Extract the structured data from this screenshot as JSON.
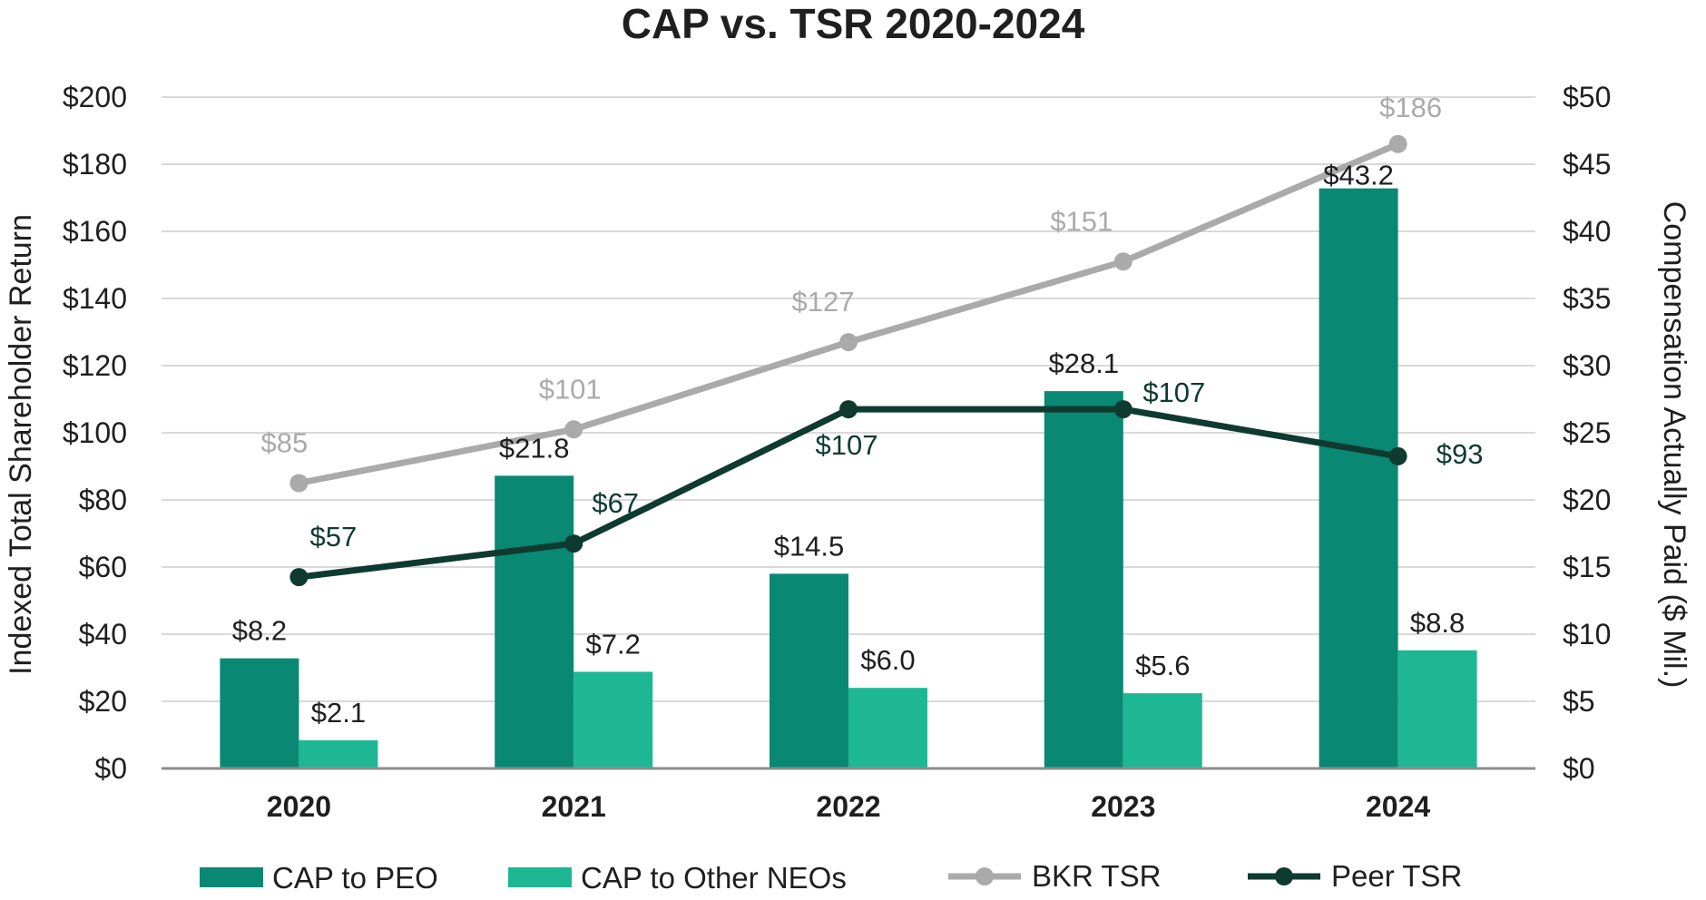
{
  "chart_data": {
    "type": "bar",
    "title": "CAP vs. TSR 2020-2024",
    "categories": [
      "2020",
      "2021",
      "2022",
      "2023",
      "2024"
    ],
    "ylabel": "Indexed Total Shareholder Return",
    "y2label": "Compensation Actually Paid ($ Mil.)",
    "ylim": [
      0,
      200
    ],
    "y2lim": [
      0,
      50
    ],
    "yticks": [
      "$0",
      "$20",
      "$40",
      "$60",
      "$80",
      "$100",
      "$120",
      "$140",
      "$160",
      "$180",
      "$200"
    ],
    "y2ticks": [
      "$0",
      "$5",
      "$10",
      "$15",
      "$20",
      "$25",
      "$30",
      "$35",
      "$40",
      "$45",
      "$50"
    ],
    "grid": true,
    "legend_position": "bottom",
    "series": [
      {
        "name": "CAP to PEO",
        "type": "bar",
        "axis": "right",
        "color": "#098874",
        "values": [
          8.2,
          21.8,
          14.5,
          28.1,
          43.2
        ],
        "labels": [
          "$8.2",
          "$21.8",
          "$14.5",
          "$28.1",
          "$43.2"
        ]
      },
      {
        "name": "CAP to Other NEOs",
        "type": "bar",
        "axis": "right",
        "color": "#1db893",
        "values": [
          2.1,
          7.2,
          6.0,
          5.6,
          8.8
        ],
        "labels": [
          "$2.1",
          "$7.2",
          "$6.0",
          "$5.6",
          "$8.8"
        ]
      },
      {
        "name": "BKR TSR",
        "type": "line",
        "axis": "left",
        "color": "#aaaaaa",
        "values": [
          85,
          101,
          127,
          151,
          186
        ],
        "labels": [
          "$85",
          "$101",
          "$127",
          "$151",
          "$186"
        ]
      },
      {
        "name": "Peer TSR",
        "type": "line",
        "axis": "left",
        "color": "#0f3a2f",
        "values": [
          57,
          67,
          107,
          107,
          93
        ],
        "labels": [
          "$57",
          "$67",
          "$107",
          "$107",
          "$93"
        ]
      }
    ]
  }
}
